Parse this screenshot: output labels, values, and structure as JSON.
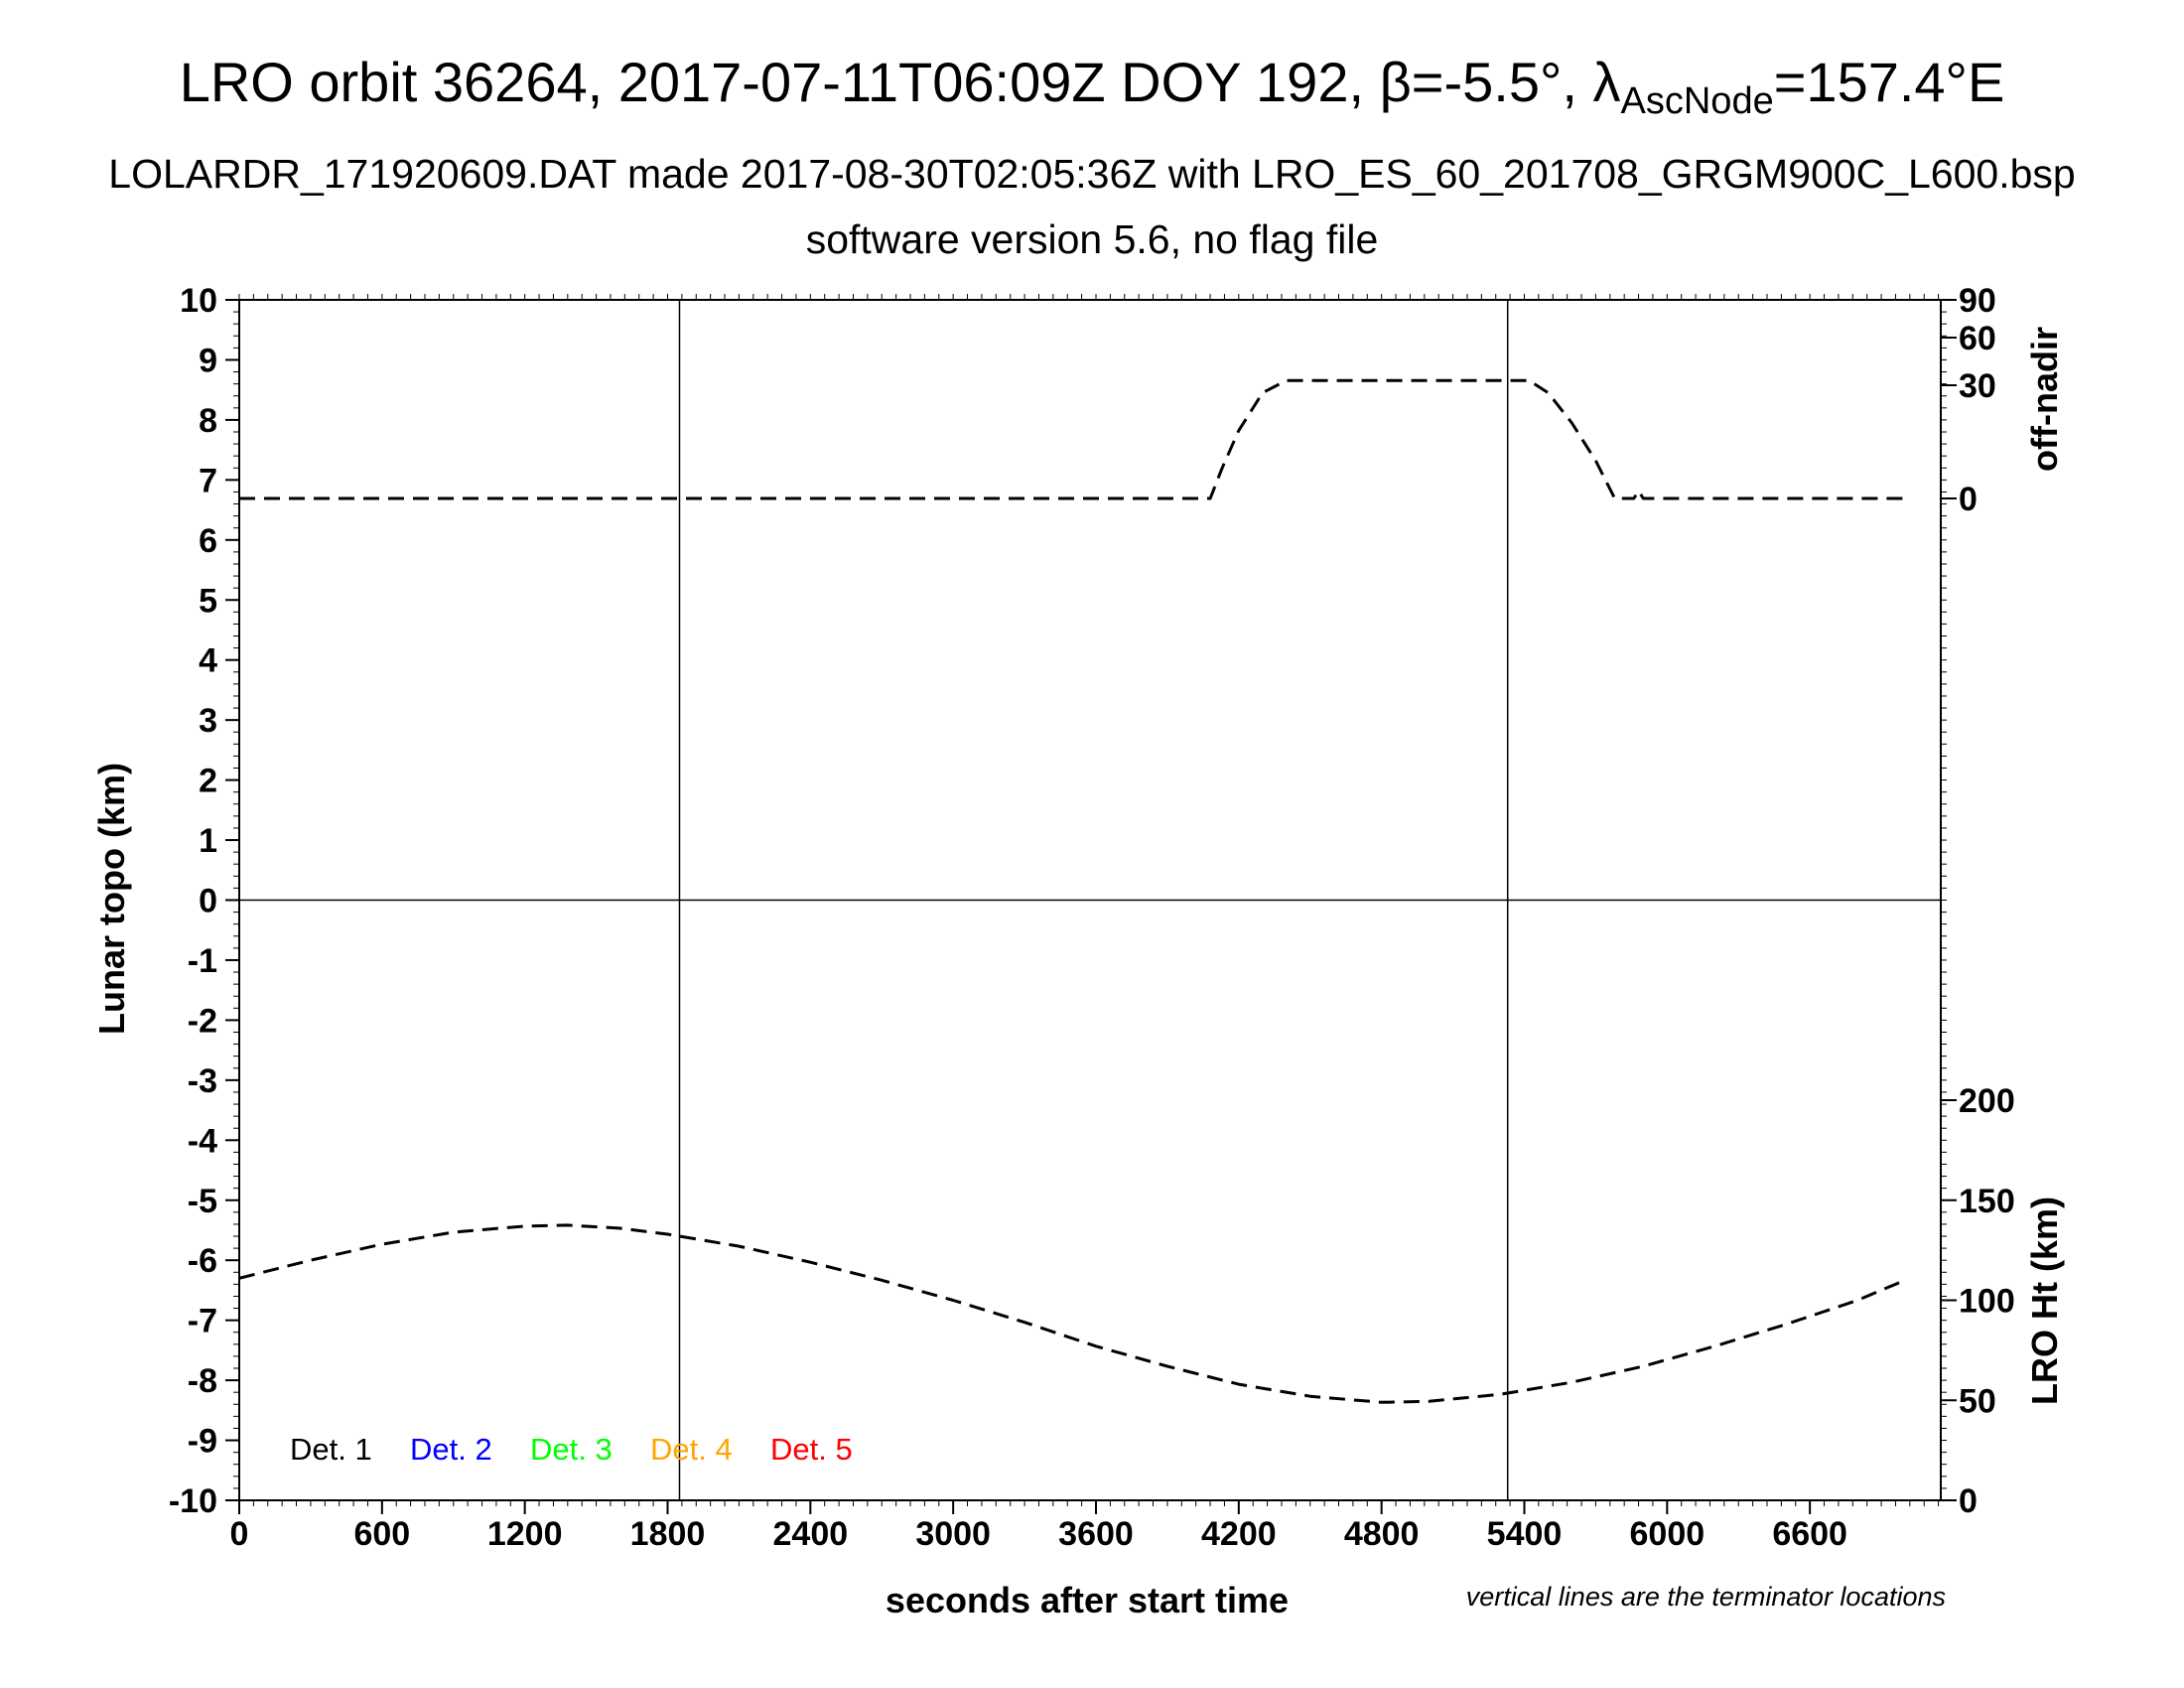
{
  "header": {
    "title_main": "LRO orbit 36264, 2017-07-11T06:09Z DOY 192, β=-5.5°, λ",
    "title_sub": "AscNode",
    "title_end": "=157.4°E",
    "subtitle": "LOLARDR_171920609.DAT made 2017-08-30T02:05:36Z with LRO_ES_60_201708_GRGM900C_L600.bsp",
    "subtitle2": "software version 5.6, no flag file"
  },
  "chart_data": {
    "type": "line",
    "xlabel": "seconds after start time",
    "ylabel": "Lunar topo (km)",
    "xlim": [
      0,
      7150
    ],
    "ylim": [
      -10,
      10
    ],
    "x_ticks": [
      0,
      600,
      1200,
      1800,
      2400,
      3000,
      3600,
      4200,
      4800,
      5400,
      6000,
      6600
    ],
    "y_ticks": [
      10,
      9,
      8,
      7,
      6,
      5,
      4,
      3,
      2,
      1,
      0,
      -1,
      -2,
      -3,
      -4,
      -5,
      -6,
      -7,
      -8,
      -9,
      -10
    ],
    "right_axis_top": {
      "label": "off-nadir",
      "ticks": [
        0,
        30,
        60,
        90
      ]
    },
    "right_axis_bottom": {
      "label": "LRO Ht (km)",
      "ticks": [
        0,
        50,
        100,
        150,
        200
      ],
      "ylim": [
        0,
        200
      ]
    },
    "terminator_lines_x": [
      1850,
      5330
    ],
    "zero_line_y": 0,
    "series": [
      {
        "role": "off-nadir angle (deg)",
        "style": "dashed",
        "points": [
          [
            0,
            0
          ],
          [
            3900,
            0
          ],
          [
            4080,
            0
          ],
          [
            4130,
            8
          ],
          [
            4200,
            18
          ],
          [
            4300,
            28
          ],
          [
            4400,
            33
          ],
          [
            5420,
            33
          ],
          [
            5500,
            28
          ],
          [
            5600,
            20
          ],
          [
            5700,
            10
          ],
          [
            5780,
            0
          ],
          [
            5860,
            0
          ],
          [
            5880,
            2
          ],
          [
            5900,
            0
          ],
          [
            7000,
            0
          ]
        ]
      },
      {
        "role": "LRO Ht (km)",
        "style": "dashed",
        "points": [
          [
            0,
            111
          ],
          [
            300,
            120
          ],
          [
            600,
            128
          ],
          [
            900,
            134
          ],
          [
            1200,
            137
          ],
          [
            1380,
            137.5
          ],
          [
            1600,
            136
          ],
          [
            1800,
            133
          ],
          [
            2100,
            127
          ],
          [
            2400,
            119
          ],
          [
            2700,
            110
          ],
          [
            3000,
            100
          ],
          [
            3300,
            89
          ],
          [
            3600,
            77
          ],
          [
            3900,
            67
          ],
          [
            4200,
            58
          ],
          [
            4500,
            52
          ],
          [
            4800,
            49
          ],
          [
            5000,
            49.5
          ],
          [
            5300,
            53
          ],
          [
            5600,
            59
          ],
          [
            5900,
            67
          ],
          [
            6200,
            77
          ],
          [
            6500,
            88
          ],
          [
            6800,
            100
          ],
          [
            7000,
            110
          ]
        ]
      }
    ],
    "legend": [
      {
        "label": "Det. 1",
        "color": "#000000"
      },
      {
        "label": "Det. 2",
        "color": "#0000ff"
      },
      {
        "label": "Det. 3",
        "color": "#00ff00"
      },
      {
        "label": "Det. 4",
        "color": "#ffa500"
      },
      {
        "label": "Det. 5",
        "color": "#ff0000"
      }
    ],
    "note": "vertical lines are the terminator locations"
  }
}
